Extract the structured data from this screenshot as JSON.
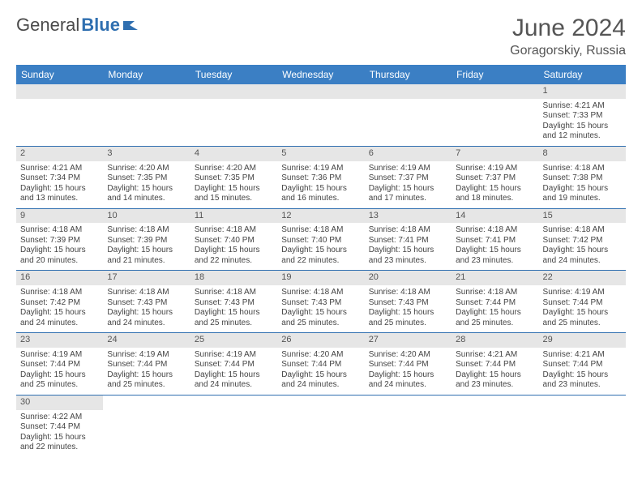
{
  "logo": {
    "text1": "General",
    "text2": "Blue"
  },
  "title": "June 2024",
  "location": "Goragorskiy, Russia",
  "colors": {
    "header_bg": "#3b7fc4",
    "header_text": "#ffffff",
    "daynum_bg": "#e6e6e6",
    "row_border": "#2f6fb0",
    "logo_gray": "#4a4a4a",
    "logo_blue": "#2f6fb0"
  },
  "weekdays": [
    "Sunday",
    "Monday",
    "Tuesday",
    "Wednesday",
    "Thursday",
    "Friday",
    "Saturday"
  ],
  "weeks": [
    [
      null,
      null,
      null,
      null,
      null,
      null,
      {
        "n": "1",
        "sr": "Sunrise: 4:21 AM",
        "ss": "Sunset: 7:33 PM",
        "dl1": "Daylight: 15 hours",
        "dl2": "and 12 minutes."
      }
    ],
    [
      {
        "n": "2",
        "sr": "Sunrise: 4:21 AM",
        "ss": "Sunset: 7:34 PM",
        "dl1": "Daylight: 15 hours",
        "dl2": "and 13 minutes."
      },
      {
        "n": "3",
        "sr": "Sunrise: 4:20 AM",
        "ss": "Sunset: 7:35 PM",
        "dl1": "Daylight: 15 hours",
        "dl2": "and 14 minutes."
      },
      {
        "n": "4",
        "sr": "Sunrise: 4:20 AM",
        "ss": "Sunset: 7:35 PM",
        "dl1": "Daylight: 15 hours",
        "dl2": "and 15 minutes."
      },
      {
        "n": "5",
        "sr": "Sunrise: 4:19 AM",
        "ss": "Sunset: 7:36 PM",
        "dl1": "Daylight: 15 hours",
        "dl2": "and 16 minutes."
      },
      {
        "n": "6",
        "sr": "Sunrise: 4:19 AM",
        "ss": "Sunset: 7:37 PM",
        "dl1": "Daylight: 15 hours",
        "dl2": "and 17 minutes."
      },
      {
        "n": "7",
        "sr": "Sunrise: 4:19 AM",
        "ss": "Sunset: 7:37 PM",
        "dl1": "Daylight: 15 hours",
        "dl2": "and 18 minutes."
      },
      {
        "n": "8",
        "sr": "Sunrise: 4:18 AM",
        "ss": "Sunset: 7:38 PM",
        "dl1": "Daylight: 15 hours",
        "dl2": "and 19 minutes."
      }
    ],
    [
      {
        "n": "9",
        "sr": "Sunrise: 4:18 AM",
        "ss": "Sunset: 7:39 PM",
        "dl1": "Daylight: 15 hours",
        "dl2": "and 20 minutes."
      },
      {
        "n": "10",
        "sr": "Sunrise: 4:18 AM",
        "ss": "Sunset: 7:39 PM",
        "dl1": "Daylight: 15 hours",
        "dl2": "and 21 minutes."
      },
      {
        "n": "11",
        "sr": "Sunrise: 4:18 AM",
        "ss": "Sunset: 7:40 PM",
        "dl1": "Daylight: 15 hours",
        "dl2": "and 22 minutes."
      },
      {
        "n": "12",
        "sr": "Sunrise: 4:18 AM",
        "ss": "Sunset: 7:40 PM",
        "dl1": "Daylight: 15 hours",
        "dl2": "and 22 minutes."
      },
      {
        "n": "13",
        "sr": "Sunrise: 4:18 AM",
        "ss": "Sunset: 7:41 PM",
        "dl1": "Daylight: 15 hours",
        "dl2": "and 23 minutes."
      },
      {
        "n": "14",
        "sr": "Sunrise: 4:18 AM",
        "ss": "Sunset: 7:41 PM",
        "dl1": "Daylight: 15 hours",
        "dl2": "and 23 minutes."
      },
      {
        "n": "15",
        "sr": "Sunrise: 4:18 AM",
        "ss": "Sunset: 7:42 PM",
        "dl1": "Daylight: 15 hours",
        "dl2": "and 24 minutes."
      }
    ],
    [
      {
        "n": "16",
        "sr": "Sunrise: 4:18 AM",
        "ss": "Sunset: 7:42 PM",
        "dl1": "Daylight: 15 hours",
        "dl2": "and 24 minutes."
      },
      {
        "n": "17",
        "sr": "Sunrise: 4:18 AM",
        "ss": "Sunset: 7:43 PM",
        "dl1": "Daylight: 15 hours",
        "dl2": "and 24 minutes."
      },
      {
        "n": "18",
        "sr": "Sunrise: 4:18 AM",
        "ss": "Sunset: 7:43 PM",
        "dl1": "Daylight: 15 hours",
        "dl2": "and 25 minutes."
      },
      {
        "n": "19",
        "sr": "Sunrise: 4:18 AM",
        "ss": "Sunset: 7:43 PM",
        "dl1": "Daylight: 15 hours",
        "dl2": "and 25 minutes."
      },
      {
        "n": "20",
        "sr": "Sunrise: 4:18 AM",
        "ss": "Sunset: 7:43 PM",
        "dl1": "Daylight: 15 hours",
        "dl2": "and 25 minutes."
      },
      {
        "n": "21",
        "sr": "Sunrise: 4:18 AM",
        "ss": "Sunset: 7:44 PM",
        "dl1": "Daylight: 15 hours",
        "dl2": "and 25 minutes."
      },
      {
        "n": "22",
        "sr": "Sunrise: 4:19 AM",
        "ss": "Sunset: 7:44 PM",
        "dl1": "Daylight: 15 hours",
        "dl2": "and 25 minutes."
      }
    ],
    [
      {
        "n": "23",
        "sr": "Sunrise: 4:19 AM",
        "ss": "Sunset: 7:44 PM",
        "dl1": "Daylight: 15 hours",
        "dl2": "and 25 minutes."
      },
      {
        "n": "24",
        "sr": "Sunrise: 4:19 AM",
        "ss": "Sunset: 7:44 PM",
        "dl1": "Daylight: 15 hours",
        "dl2": "and 25 minutes."
      },
      {
        "n": "25",
        "sr": "Sunrise: 4:19 AM",
        "ss": "Sunset: 7:44 PM",
        "dl1": "Daylight: 15 hours",
        "dl2": "and 24 minutes."
      },
      {
        "n": "26",
        "sr": "Sunrise: 4:20 AM",
        "ss": "Sunset: 7:44 PM",
        "dl1": "Daylight: 15 hours",
        "dl2": "and 24 minutes."
      },
      {
        "n": "27",
        "sr": "Sunrise: 4:20 AM",
        "ss": "Sunset: 7:44 PM",
        "dl1": "Daylight: 15 hours",
        "dl2": "and 24 minutes."
      },
      {
        "n": "28",
        "sr": "Sunrise: 4:21 AM",
        "ss": "Sunset: 7:44 PM",
        "dl1": "Daylight: 15 hours",
        "dl2": "and 23 minutes."
      },
      {
        "n": "29",
        "sr": "Sunrise: 4:21 AM",
        "ss": "Sunset: 7:44 PM",
        "dl1": "Daylight: 15 hours",
        "dl2": "and 23 minutes."
      }
    ],
    [
      {
        "n": "30",
        "sr": "Sunrise: 4:22 AM",
        "ss": "Sunset: 7:44 PM",
        "dl1": "Daylight: 15 hours",
        "dl2": "and 22 minutes."
      },
      null,
      null,
      null,
      null,
      null,
      null
    ]
  ]
}
